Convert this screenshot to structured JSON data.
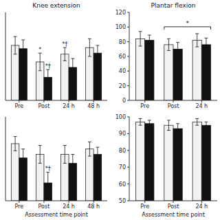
{
  "chart_data": [
    {
      "type": "bar",
      "title": "Knee extension",
      "categories": [
        "Pre",
        "Post",
        "24 h",
        "48 h"
      ],
      "series": [
        {
          "color": "#f2f2f2",
          "values": [
            105,
            90,
            97,
            103
          ],
          "errors": [
            8,
            8,
            6,
            8
          ]
        },
        {
          "color": "#111111",
          "values": [
            102,
            76,
            85,
            98
          ],
          "errors": [
            8,
            7,
            8,
            7
          ]
        }
      ],
      "ylim": [
        55,
        135
      ],
      "tick_labels": "x",
      "grid": false,
      "annotations": [
        {
          "text": "*",
          "category": 1,
          "series": 0
        },
        {
          "text": "*†",
          "category": 1,
          "series": 1
        },
        {
          "text": "*†",
          "category": 2,
          "series": 0
        }
      ]
    },
    {
      "type": "bar",
      "title": "Plantar flexion",
      "categories": [
        "Pre",
        "Post",
        "24 h"
      ],
      "series": [
        {
          "color": "#f2f2f2",
          "values": [
            84,
            76,
            82
          ],
          "errors": [
            10,
            8,
            9
          ]
        },
        {
          "color": "#111111",
          "values": [
            82,
            70,
            76
          ],
          "errors": [
            7,
            9,
            9
          ]
        }
      ],
      "ylim": [
        0,
        120
      ],
      "yticks": [
        0,
        20,
        40,
        60,
        80,
        100,
        120
      ],
      "grid": false,
      "annotations": [
        {
          "text": "*",
          "from": 1,
          "to": 2
        }
      ]
    },
    {
      "type": "bar",
      "categories": [
        "Pre",
        "Post",
        "24 h",
        "48 h"
      ],
      "x_label": "Assessment time point",
      "series": [
        {
          "color": "#f2f2f2",
          "values": [
            97,
            91,
            91,
            94
          ],
          "errors": [
            4,
            5,
            5,
            4
          ]
        },
        {
          "color": "#111111",
          "values": [
            89,
            75,
            86,
            91
          ],
          "errors": [
            5,
            6,
            5,
            4
          ]
        }
      ],
      "ylim": [
        65,
        112
      ],
      "tick_labels": "x",
      "grid": false,
      "annotations": [
        {
          "text": "*†",
          "category": 1,
          "series": 1
        }
      ]
    },
    {
      "type": "bar",
      "categories": [
        "Pre",
        "Post",
        "24 h"
      ],
      "x_label": "Assessment time point",
      "series": [
        {
          "color": "#f2f2f2",
          "values": [
            97,
            95,
            97
          ],
          "errors": [
            2,
            3,
            2
          ]
        },
        {
          "color": "#111111",
          "values": [
            96,
            93,
            95
          ],
          "errors": [
            2,
            3,
            2
          ]
        }
      ],
      "ylim": [
        50,
        100
      ],
      "yticks": [
        50,
        60,
        70,
        80,
        90,
        100
      ],
      "grid": false
    }
  ]
}
